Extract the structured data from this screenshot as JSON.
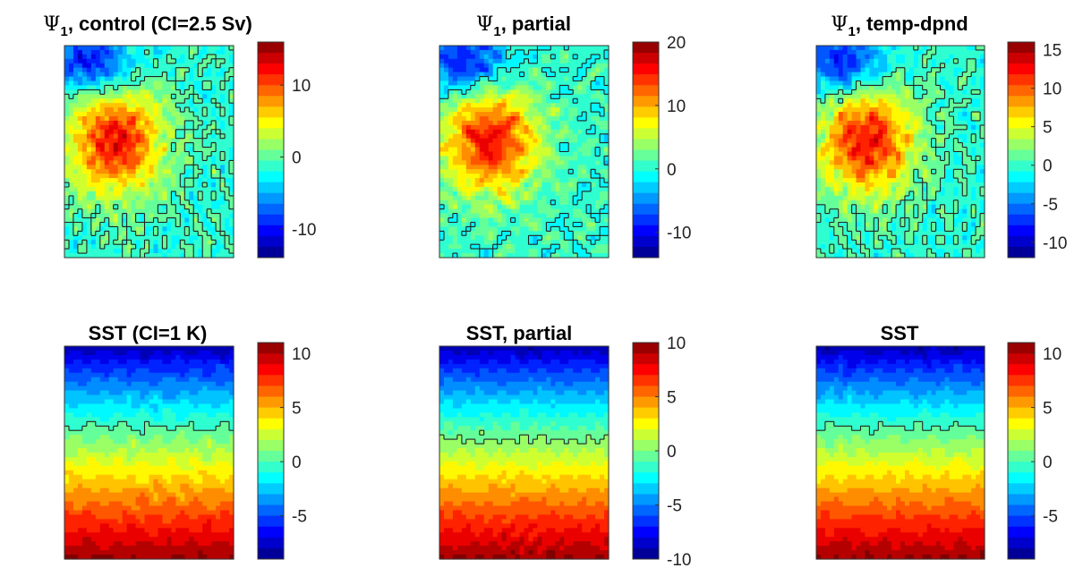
{
  "chart_data": [
    {
      "type": "heatmap",
      "title_symbol": "Ψ",
      "title_subscript": "1",
      "title_rest": ", control (CI=2.5 Sv)",
      "colorbar": {
        "ticks": [
          10,
          0,
          -10
        ],
        "range": [
          -14,
          16
        ]
      },
      "field": "psi",
      "seed": 1
    },
    {
      "type": "heatmap",
      "title_symbol": "Ψ",
      "title_subscript": "1",
      "title_rest": ", partial",
      "colorbar": {
        "ticks": [
          20,
          10,
          0,
          -10
        ],
        "range": [
          -14,
          20
        ]
      },
      "field": "psi",
      "seed": 2
    },
    {
      "type": "heatmap",
      "title_symbol": "Ψ",
      "title_subscript": "1",
      "title_rest": ", temp-dpnd",
      "colorbar": {
        "ticks": [
          15,
          10,
          5,
          0,
          -5,
          -10
        ],
        "range": [
          -12,
          16
        ]
      },
      "field": "psi",
      "seed": 3
    },
    {
      "type": "heatmap",
      "title_symbol": "",
      "title_subscript": "",
      "title_rest": "SST (CI=1 K)",
      "colorbar": {
        "ticks": [
          10,
          5,
          0,
          -5
        ],
        "range": [
          -9,
          11
        ]
      },
      "field": "sst",
      "seed": 4
    },
    {
      "type": "heatmap",
      "title_symbol": "",
      "title_subscript": "",
      "title_rest": "SST, partial",
      "colorbar": {
        "ticks": [
          10,
          5,
          0,
          -5,
          -10
        ],
        "range": [
          -10,
          10
        ]
      },
      "field": "sst",
      "seed": 5
    },
    {
      "type": "heatmap",
      "title_symbol": "",
      "title_subscript": "",
      "title_rest": "SST",
      "colorbar": {
        "ticks": [
          10,
          5,
          0,
          -5
        ],
        "range": [
          -9,
          11
        ]
      },
      "field": "sst",
      "seed": 6
    }
  ],
  "colormap": "jet",
  "colors": {
    "frame": "#333333",
    "contour": "#222222"
  }
}
